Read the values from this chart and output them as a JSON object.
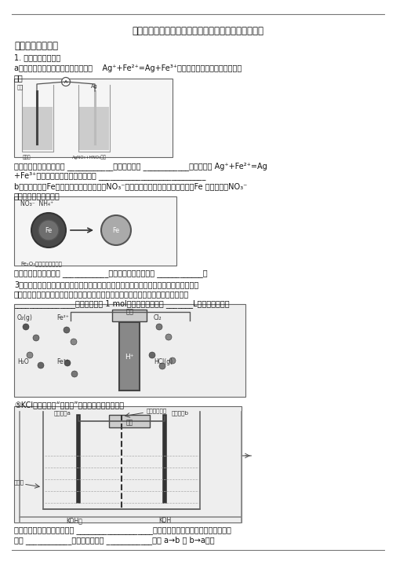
{
  "title": "高考化学易错题精选－化学能与电能练习题及答案解析",
  "section1": "一、化学能与电能",
  "subsection1": "1. 方法与规律提炼：",
  "qa1": "a）某同学利用原电池装置证明了反应    Ag⁺+Fe²⁺=Ag+Fe³⁺能够发生。设计的装置如下图所",
  "qa1b": "示。",
  "qa1ans1": "为达到目的，其中石墨为 ____________极，甲溶液是 ____________。证明反应 Ag⁺+Fe²⁺=Ag",
  "qa1ans2": "+Fe³⁺能够发生的实验操作及现象是 ____________________________",
  "qb1": "b）用零价铁（Fe）去除水体中的硝酸盐（NO₃⁻）成为环境修复研究的热点之一。Fe 还原水体中NO₃⁻",
  "qb2": "的反应原理如图所示。",
  "qbans": "上图中作负极的物质是 ____________。正极的电极反应式是 ____________。",
  "q3_1": "3）在传统的电解氯化氢回收氯气技术的基础上，科学家最近采用碳基电极材料设计了一种",
  "q3_2": "新的工艺方案，主要包括电化学过程和化学过程。如下图所示：阴极区的电极反应式为",
  "q3_3": "________________。电路中转移 1 mol电子，需消耗氧气 _______L（标准状况）。",
  "q4_1": "⑤KCl：也可采用“电解法”制备，装置如图所示。",
  "q4ans1": "写出电解时阳极的电极反应式 ____________________电解过程中通过阳离子交换膜的离子主",
  "q4ans2": "要为 ____________。其迁移方向是 ____________（填 a→b 或 b→a）。",
  "bg_color": "#ffffff",
  "text_color": "#111111",
  "fs_title": 8.5,
  "fs_body": 7.0,
  "fs_section": 8.5
}
